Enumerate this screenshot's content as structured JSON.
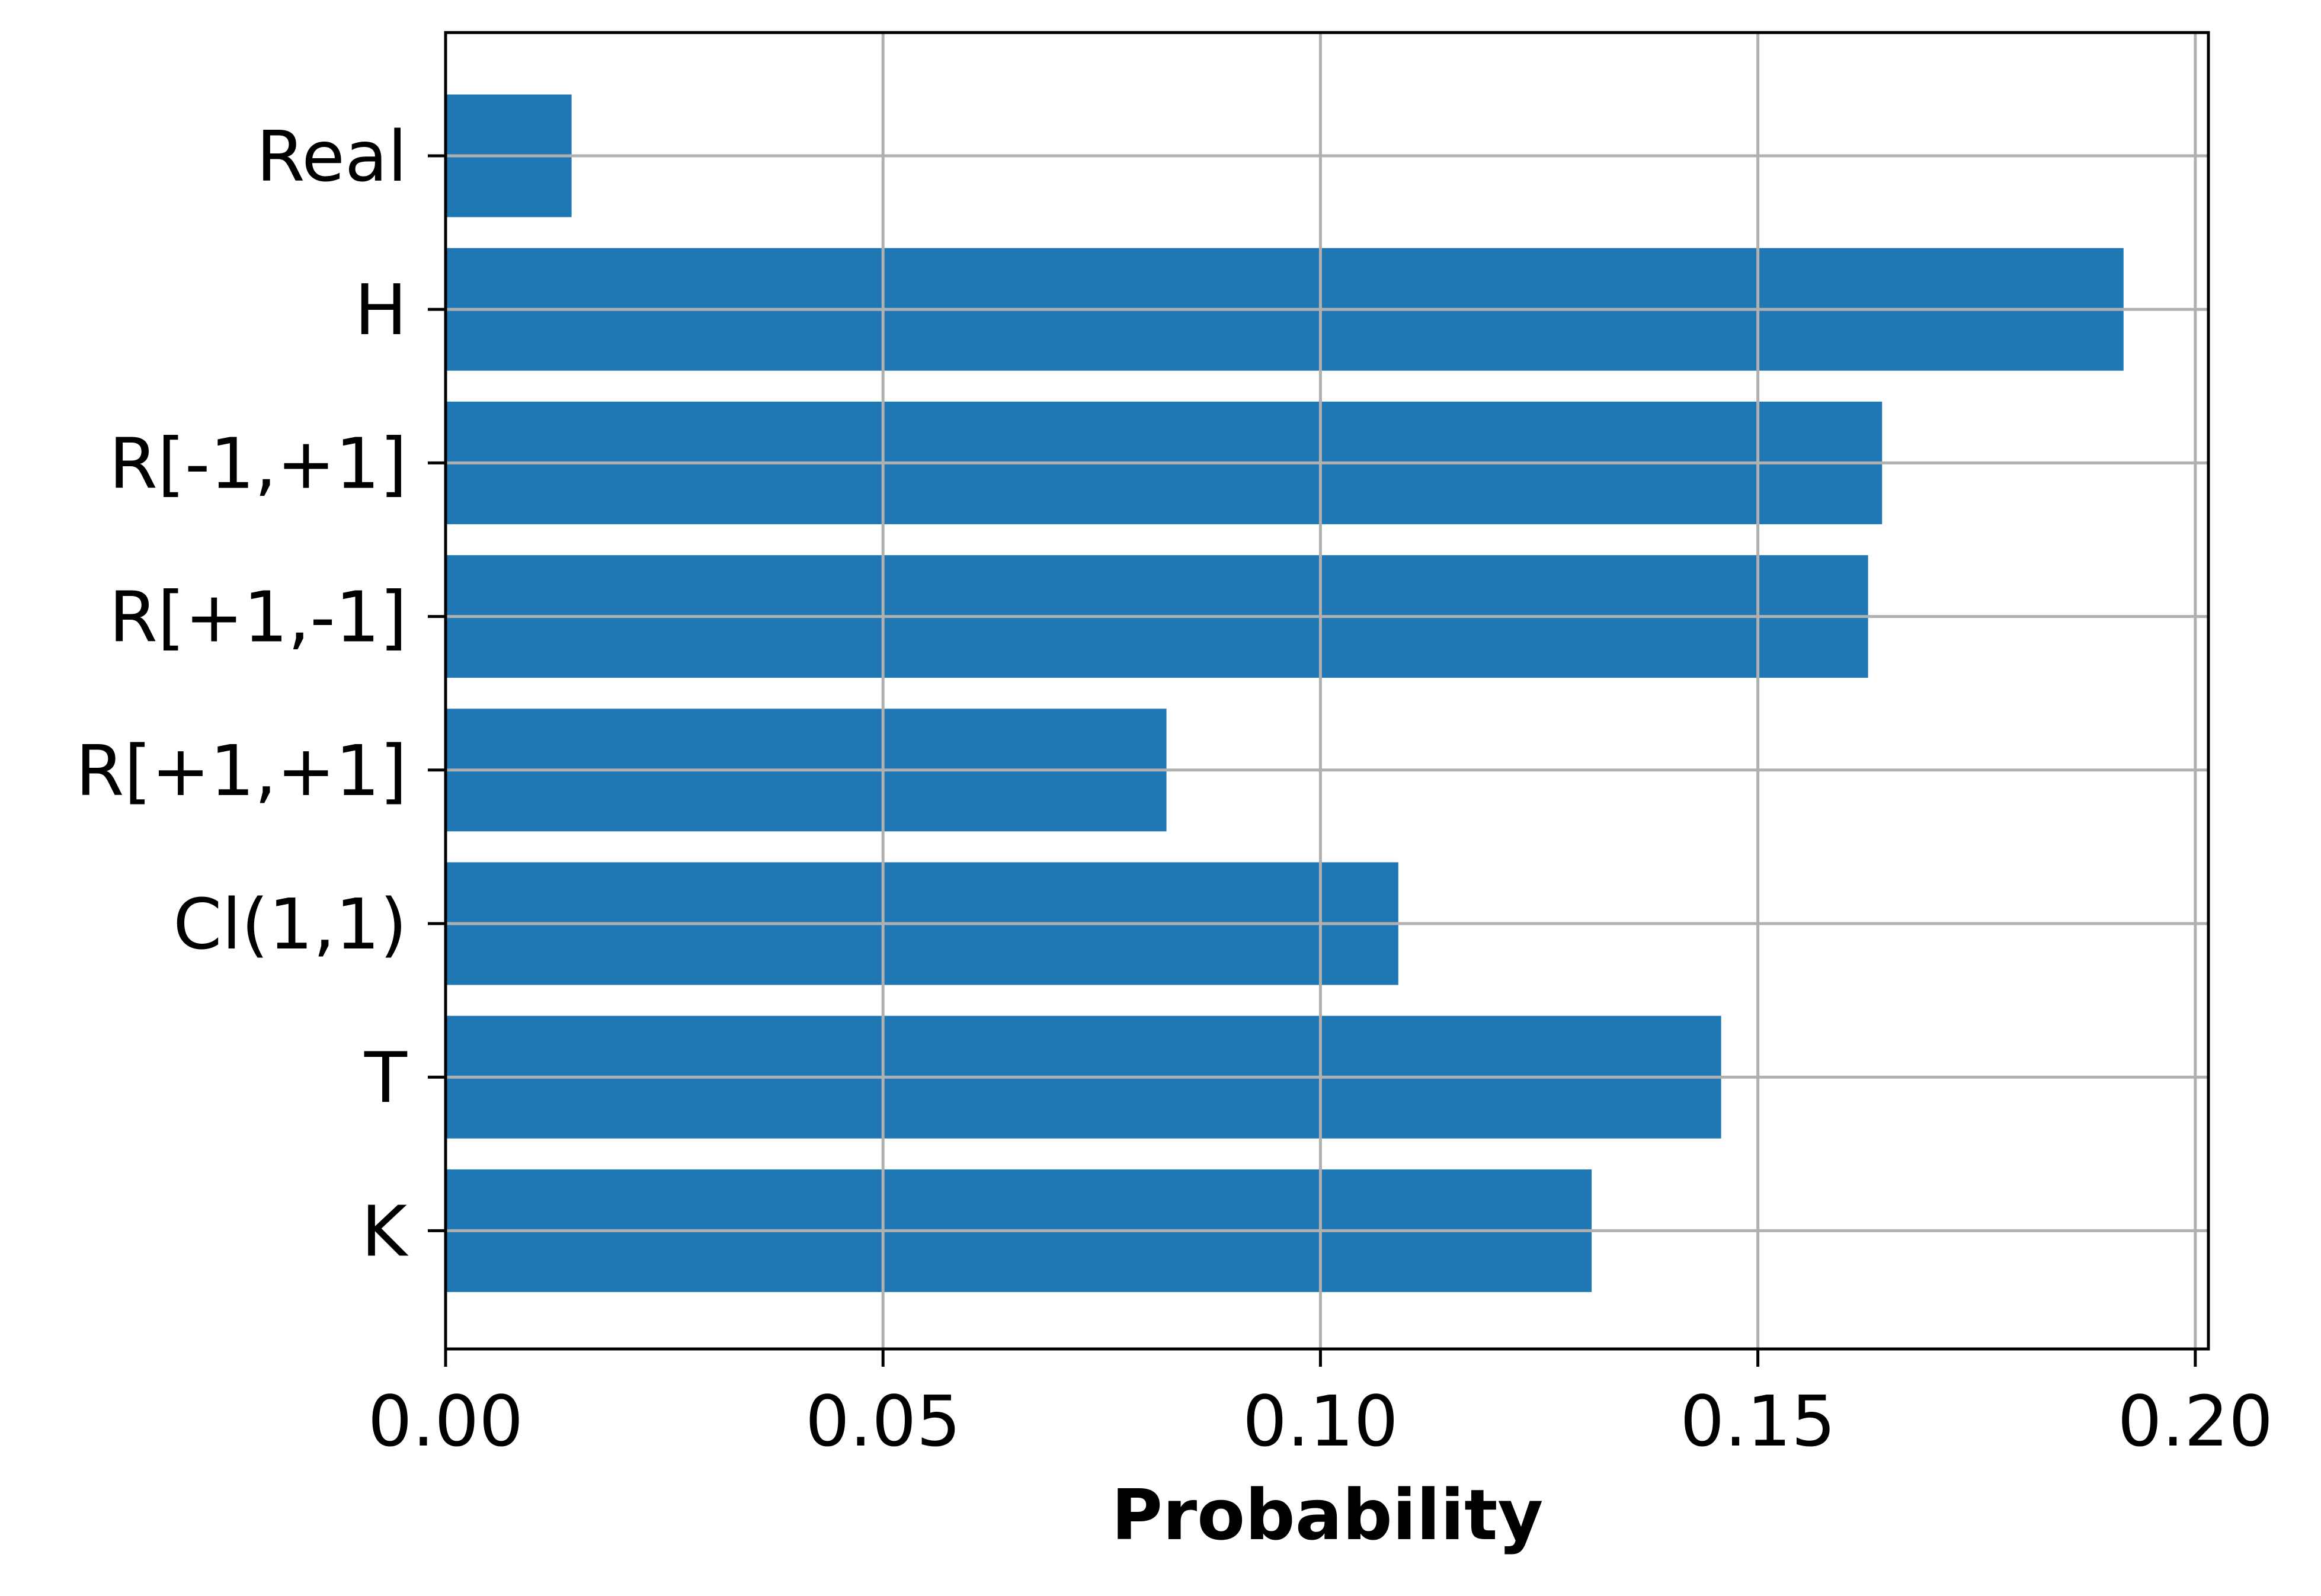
{
  "chart_data": {
    "type": "bar",
    "orientation": "horizontal",
    "title": "",
    "xlabel": "Probability",
    "ylabel": "",
    "categories": [
      "Real",
      "H",
      "R[-1,+1]",
      "R[+1,-1]",
      "R[+1,+1]",
      "Cl(1,1)",
      "T",
      "K"
    ],
    "values": [
      0.0144,
      0.1918,
      0.1642,
      0.1626,
      0.0824,
      0.1089,
      0.1458,
      0.131
    ],
    "xlim": [
      0.0,
      0.2015
    ],
    "xticks": [
      0.0,
      0.05,
      0.1,
      0.15,
      0.2
    ],
    "xtick_labels": [
      "0.00",
      "0.05",
      "0.10",
      "0.15",
      "0.20"
    ],
    "grid": true,
    "bar_color": "#1f77b4",
    "grid_color": "#b0b0b0",
    "legend": null
  }
}
